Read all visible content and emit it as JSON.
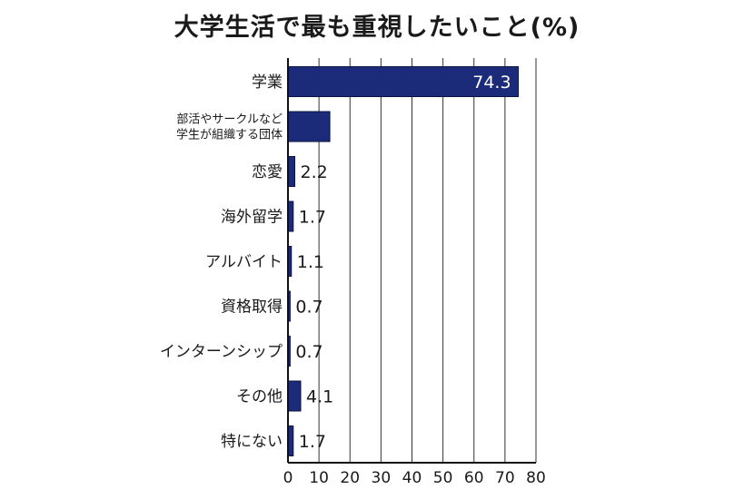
{
  "chart_data": {
    "type": "bar",
    "orientation": "horizontal",
    "title": "大学生活で最も重視したいこと(%)",
    "categories": [
      "学業",
      "部活やサークルなど\n学生が組織する団体",
      "恋愛",
      "海外留学",
      "アルバイト",
      "資格取得",
      "インターンシップ",
      "その他",
      "特にない"
    ],
    "values": [
      74.3,
      13.5,
      2.2,
      1.7,
      1.1,
      0.7,
      0.7,
      4.1,
      1.7
    ],
    "value_labels": [
      "74.3",
      "",
      "2.2",
      "1.7",
      "1.1",
      "0.7",
      "0.7",
      "4.1",
      "1.7"
    ],
    "xlim": [
      0,
      80
    ],
    "xticks": [
      0,
      10,
      20,
      30,
      40,
      50,
      60,
      70,
      80
    ],
    "grid": true,
    "bar_color": "#1c2a7a",
    "xlabel": "",
    "ylabel": ""
  }
}
